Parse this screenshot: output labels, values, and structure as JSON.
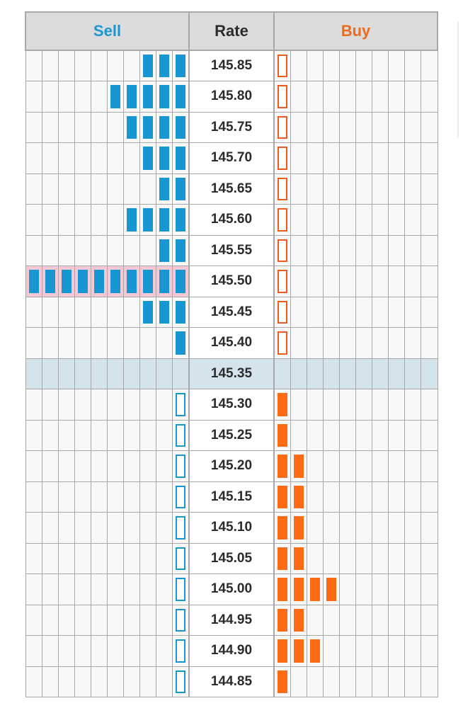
{
  "header": {
    "sell_label": "Sell",
    "rate_label": "Rate",
    "buy_label": "Buy"
  },
  "colors": {
    "sell": "#1796d2",
    "buy": "#ff6a14",
    "current_row": "#d5e3ea",
    "highlight_row": "#f4c8d4"
  },
  "columns_per_side": 10,
  "current_rate": "145.35",
  "rows": [
    {
      "rate": "145.85",
      "sell": 3,
      "sell_style": "filled",
      "buy": 1,
      "buy_style": "outline"
    },
    {
      "rate": "145.80",
      "sell": 5,
      "sell_style": "filled",
      "buy": 1,
      "buy_style": "outline"
    },
    {
      "rate": "145.75",
      "sell": 4,
      "sell_style": "filled",
      "buy": 1,
      "buy_style": "outline"
    },
    {
      "rate": "145.70",
      "sell": 3,
      "sell_style": "filled",
      "buy": 1,
      "buy_style": "outline"
    },
    {
      "rate": "145.65",
      "sell": 2,
      "sell_style": "filled",
      "buy": 1,
      "buy_style": "outline"
    },
    {
      "rate": "145.60",
      "sell": 4,
      "sell_style": "filled",
      "buy": 1,
      "buy_style": "outline"
    },
    {
      "rate": "145.55",
      "sell": 2,
      "sell_style": "filled",
      "buy": 1,
      "buy_style": "outline"
    },
    {
      "rate": "145.50",
      "sell": 10,
      "sell_style": "filled",
      "buy": 1,
      "buy_style": "outline",
      "highlight": true
    },
    {
      "rate": "145.45",
      "sell": 3,
      "sell_style": "filled",
      "buy": 1,
      "buy_style": "outline"
    },
    {
      "rate": "145.40",
      "sell": 1,
      "sell_style": "filled",
      "buy": 1,
      "buy_style": "outline"
    },
    {
      "rate": "145.35",
      "sell": 0,
      "sell_style": "none",
      "buy": 0,
      "buy_style": "none",
      "current": true
    },
    {
      "rate": "145.30",
      "sell": 1,
      "sell_style": "outline",
      "buy": 1,
      "buy_style": "filled"
    },
    {
      "rate": "145.25",
      "sell": 1,
      "sell_style": "outline",
      "buy": 1,
      "buy_style": "filled"
    },
    {
      "rate": "145.20",
      "sell": 1,
      "sell_style": "outline",
      "buy": 2,
      "buy_style": "filled"
    },
    {
      "rate": "145.15",
      "sell": 1,
      "sell_style": "outline",
      "buy": 2,
      "buy_style": "filled"
    },
    {
      "rate": "145.10",
      "sell": 1,
      "sell_style": "outline",
      "buy": 2,
      "buy_style": "filled"
    },
    {
      "rate": "145.05",
      "sell": 1,
      "sell_style": "outline",
      "buy": 2,
      "buy_style": "filled"
    },
    {
      "rate": "145.00",
      "sell": 1,
      "sell_style": "outline",
      "buy": 4,
      "buy_style": "filled"
    },
    {
      "rate": "144.95",
      "sell": 1,
      "sell_style": "outline",
      "buy": 2,
      "buy_style": "filled"
    },
    {
      "rate": "144.90",
      "sell": 1,
      "sell_style": "outline",
      "buy": 3,
      "buy_style": "filled"
    },
    {
      "rate": "144.85",
      "sell": 1,
      "sell_style": "outline",
      "buy": 1,
      "buy_style": "filled"
    }
  ]
}
